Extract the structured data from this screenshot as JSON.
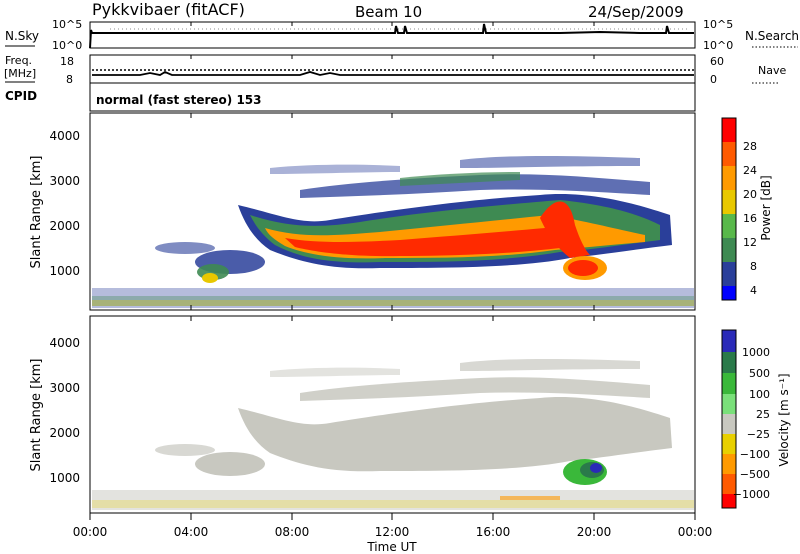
{
  "header": {
    "station": "Pykkvibaer (fitACF)",
    "beam": "Beam 10",
    "date": "24/Sep/2009"
  },
  "nsky_panel": {
    "left_label": "N.Sky",
    "right_label": "N.Search",
    "left_ticks": [
      "10^5",
      "10^0"
    ],
    "right_ticks": [
      "10^5",
      "10^0"
    ]
  },
  "freq_panel": {
    "left_label_line1": "Freq.",
    "left_label_line2": "[MHz]",
    "right_label": "Nave",
    "left_ticks": [
      "18",
      "8"
    ],
    "right_ticks": [
      "60",
      "0"
    ]
  },
  "cpid_panel": {
    "label": "CPID",
    "text": "normal (fast stereo) 153"
  },
  "colors": {
    "power_scale": [
      "#0000ff",
      "#2a3f9a",
      "#3e8a52",
      "#58b84a",
      "#e8c800",
      "#ff9a00",
      "#ff5a00",
      "#ff0000"
    ],
    "velocity_scale": [
      "#2a2ab8",
      "#2a7a4a",
      "#3ab83a",
      "#7ae07a",
      "#c8c8c0",
      "#e8d000",
      "#ff9a00",
      "#ff5a00",
      "#ff0000"
    ]
  },
  "chart_data": [
    {
      "type": "heatmap",
      "name": "power",
      "xlabel": "",
      "ylabel": "Slant Range [km]",
      "ylim": [
        200,
        4500
      ],
      "yticks": [
        "1000",
        "2000",
        "3000",
        "4000"
      ],
      "xticks": [
        "00:00",
        "04:00",
        "08:00",
        "12:00",
        "16:00",
        "20:00",
        "00:00"
      ],
      "colorbar_label": "Power [dB]",
      "colorbar_ticks": [
        "28",
        "24",
        "20",
        "16",
        "12",
        "8",
        "4"
      ],
      "dominant_feature": "E/F-region echo band 1200-2400 km from 06:30 to 22:30 UT, peak power > 28 dB near 1500 km 07:30-18:00 UT"
    },
    {
      "type": "heatmap",
      "name": "velocity",
      "xlabel": "Time UT",
      "ylabel": "Slant Range [km]",
      "ylim": [
        200,
        4500
      ],
      "yticks": [
        "1000",
        "2000",
        "3000",
        "4000"
      ],
      "xticks": [
        "00:00",
        "04:00",
        "08:00",
        "12:00",
        "16:00",
        "20:00",
        "00:00"
      ],
      "colorbar_label": "Velocity [m s⁻¹]",
      "colorbar_ticks": [
        "1000",
        "500",
        "100",
        "25",
        "−25",
        "−100",
        "−500",
        "−1000"
      ],
      "dominant_feature": "mostly low velocity (|v| < 25 m/s) ground scatter; positive velocities near 800 km around 19:30-21:00 UT"
    }
  ]
}
